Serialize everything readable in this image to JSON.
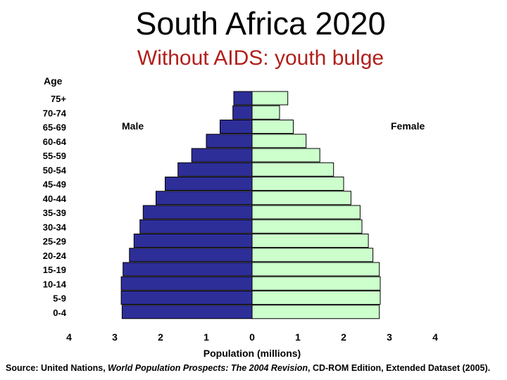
{
  "header": {
    "title": "South Africa 2020",
    "subtitle": "Without AIDS: youth bulge"
  },
  "source": {
    "prefix": "Source: United Nations, ",
    "title": "World Population Prospects: The 2004 Revision",
    "suffix": ", CD-ROM Edition, Extended Dataset (2005)."
  },
  "colors": {
    "male": "#2e2e99",
    "female": "#ccffcc",
    "subtitle": "#b0201c"
  },
  "chart_data": {
    "type": "bar",
    "orientation": "horizontal",
    "subtype": "population-pyramid",
    "title": "South Africa 2020",
    "subtitle": "Without AIDS: youth bulge",
    "ylabel": "Age",
    "xlabel": "Population (millions)",
    "legend": {
      "male": "Male",
      "female": "Female"
    },
    "xlim": [
      -4,
      4
    ],
    "x_ticks": [
      "4",
      "3",
      "2",
      "1",
      "0",
      "1",
      "2",
      "3",
      "4"
    ],
    "categories": [
      "75+",
      "70-74",
      "65-69",
      "60-64",
      "55-59",
      "50-54",
      "45-49",
      "40-44",
      "35-39",
      "30-34",
      "25-29",
      "20-24",
      "15-19",
      "10-14",
      "5-9",
      "0-4"
    ],
    "series": [
      {
        "name": "Male",
        "values": [
          0.4,
          0.42,
          0.7,
          1.0,
          1.32,
          1.62,
          1.9,
          2.1,
          2.38,
          2.45,
          2.58,
          2.68,
          2.82,
          2.86,
          2.86,
          2.84
        ]
      },
      {
        "name": "Female",
        "values": [
          0.78,
          0.6,
          0.9,
          1.18,
          1.48,
          1.78,
          2.0,
          2.16,
          2.36,
          2.4,
          2.54,
          2.64,
          2.78,
          2.8,
          2.8,
          2.78
        ]
      }
    ]
  }
}
